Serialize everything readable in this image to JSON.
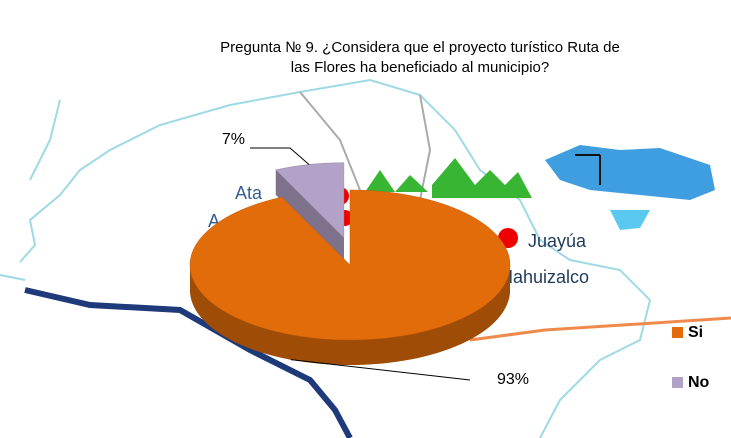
{
  "chart_data": {
    "type": "pie3d",
    "title": [
      "Pregunta № 9.  ¿Considera que el proyecto turístico Ruta de",
      "las Flores ha beneficiado al municipio?"
    ],
    "categories": [
      "Si",
      "No"
    ],
    "values": [
      93,
      7
    ],
    "value_labels": [
      "93%",
      "7%"
    ],
    "colors": [
      "#e36c0a",
      "#b3a2c7"
    ],
    "map_labels": [
      "Ata",
      "A",
      "Juayúa",
      "Nahuizalco"
    ]
  }
}
